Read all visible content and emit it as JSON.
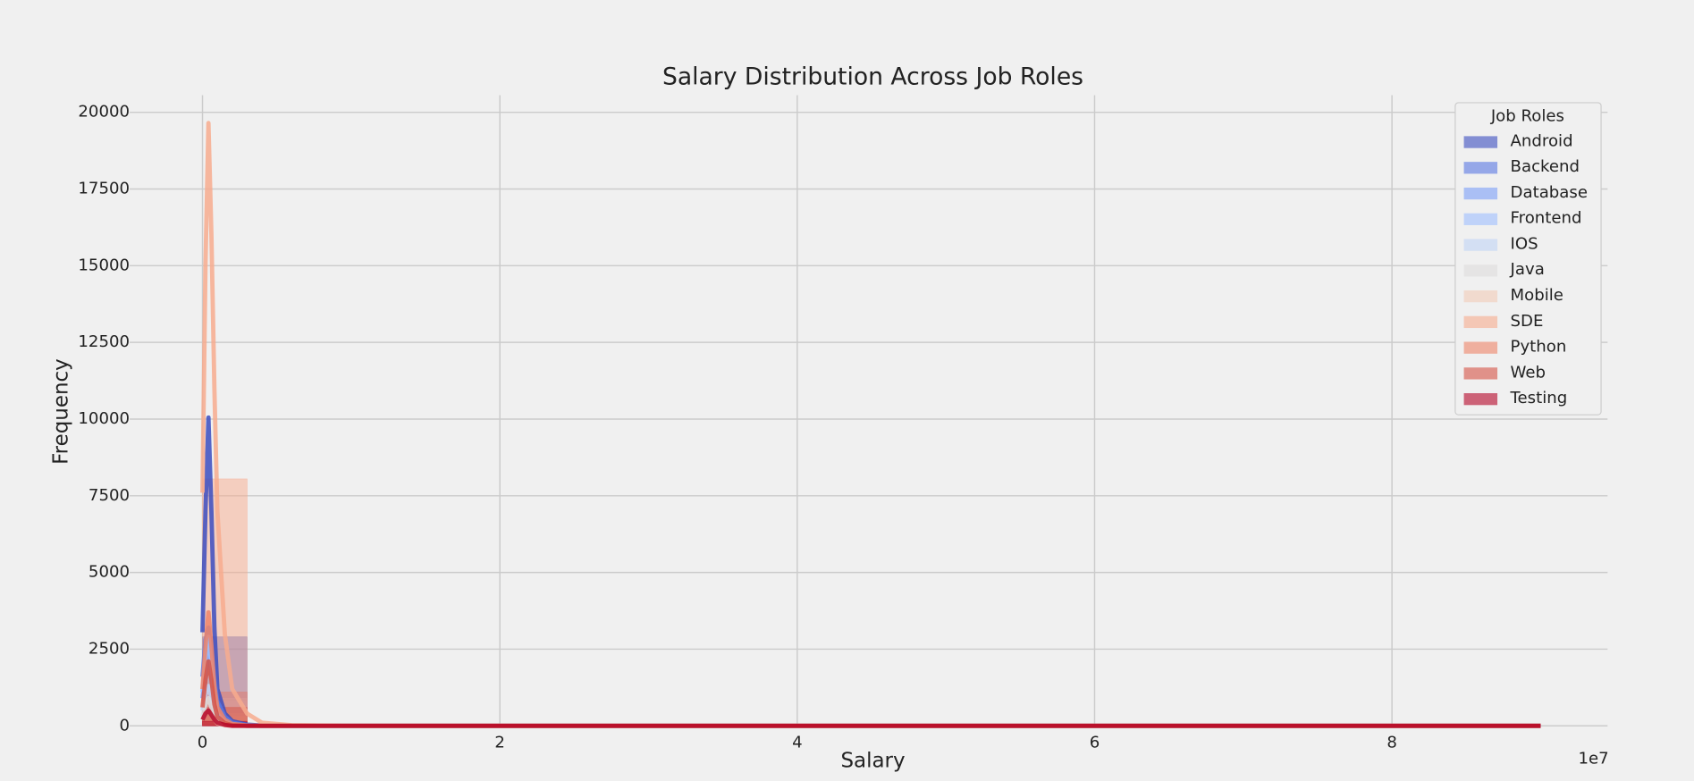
{
  "chart_data": {
    "type": "histogram",
    "title": "Salary Distribution Across Job Roles",
    "x_label": "Salary",
    "y_label": "Frequency",
    "x_offset_label": "1e7",
    "legend_title": "Job Roles",
    "legend": "upper right",
    "grid": true,
    "xlim": [
      -4900000,
      94500000
    ],
    "ylim": [
      0,
      20560
    ],
    "xticks": [
      0,
      {
        "value": 20000000,
        "label": "2"
      },
      {
        "value": 40000000,
        "label": "4"
      },
      {
        "value": 60000000,
        "label": "6"
      },
      {
        "value": 80000000,
        "label": "8"
      }
    ],
    "yticks": [
      0,
      2500,
      5000,
      7500,
      10000,
      12500,
      15000,
      17500,
      20000
    ],
    "bins": [
      0,
      3000000,
      6000000,
      9000000,
      12000000,
      15000000,
      18000000,
      21000000,
      24000000,
      27000000,
      30000000,
      33000000,
      36000000,
      39000000,
      42000000,
      45000000,
      48000000,
      51000000,
      54000000,
      57000000,
      60000000,
      63000000,
      66000000,
      69000000,
      72000000,
      75000000,
      78000000,
      81000000,
      84000000,
      87000000,
      90000000
    ],
    "kde_x": [
      0,
      200000,
      400000,
      600000,
      800000,
      1000000,
      1500000,
      2000000,
      3000000,
      4000000,
      6000000,
      10000000,
      90000000
    ],
    "series": [
      {
        "name": "Android",
        "color": "#3b4cc0",
        "counts": [
          2900,
          20,
          5,
          0,
          0,
          0,
          0,
          0,
          0,
          0,
          0,
          0,
          0,
          0,
          0,
          0,
          0,
          0,
          0,
          0,
          0,
          0,
          0,
          0,
          0,
          0,
          0,
          0,
          0,
          1
        ],
        "kde": [
          3050,
          7000,
          10050,
          7000,
          3200,
          1200,
          400,
          150,
          40,
          10,
          0,
          0,
          0
        ]
      },
      {
        "name": "Backend",
        "color": "#5977e3",
        "counts": [
          1100,
          10,
          2,
          0,
          0,
          0,
          0,
          0,
          0,
          0,
          0,
          0,
          0,
          0,
          0,
          0,
          0,
          0,
          0,
          0,
          0,
          0,
          0,
          0,
          0,
          0,
          0,
          0,
          0,
          0
        ],
        "kde": [
          1600,
          2800,
          3200,
          2500,
          1500,
          800,
          300,
          100,
          20,
          0,
          0,
          0,
          0
        ]
      },
      {
        "name": "Database",
        "color": "#7b9ff9",
        "counts": [
          800,
          8,
          0,
          0,
          0,
          0,
          0,
          0,
          0,
          0,
          0,
          0,
          0,
          0,
          0,
          0,
          0,
          0,
          0,
          0,
          0,
          0,
          0,
          0,
          0,
          0,
          0,
          0,
          0,
          0
        ],
        "kde": [
          900,
          1800,
          2400,
          1800,
          900,
          400,
          120,
          40,
          0,
          0,
          0,
          0,
          0
        ]
      },
      {
        "name": "Frontend",
        "color": "#9ebeff",
        "counts": [
          900,
          8,
          0,
          0,
          0,
          0,
          0,
          0,
          0,
          0,
          0,
          0,
          0,
          0,
          0,
          0,
          0,
          0,
          0,
          0,
          0,
          0,
          0,
          0,
          0,
          0,
          0,
          0,
          0,
          0
        ],
        "kde": [
          1100,
          2200,
          2900,
          2000,
          1000,
          400,
          120,
          30,
          0,
          0,
          0,
          0,
          0
        ]
      },
      {
        "name": "IOS",
        "color": "#c0d4f5",
        "counts": [
          400,
          4,
          0,
          0,
          0,
          0,
          0,
          0,
          0,
          0,
          0,
          0,
          0,
          0,
          0,
          0,
          0,
          0,
          0,
          0,
          0,
          0,
          0,
          0,
          0,
          0,
          0,
          0,
          0,
          0
        ],
        "kde": [
          500,
          1000,
          1300,
          900,
          500,
          200,
          60,
          20,
          0,
          0,
          0,
          0,
          0
        ]
      },
      {
        "name": "Java",
        "color": "#dddcdc",
        "counts": [
          300,
          3,
          0,
          0,
          0,
          0,
          0,
          0,
          0,
          0,
          0,
          0,
          0,
          0,
          0,
          0,
          0,
          0,
          0,
          0,
          0,
          0,
          0,
          0,
          0,
          0,
          0,
          0,
          0,
          0
        ],
        "kde": [
          300,
          700,
          900,
          600,
          300,
          120,
          40,
          10,
          0,
          0,
          0,
          0,
          0
        ]
      },
      {
        "name": "Mobile",
        "color": "#f2cbb7",
        "counts": [
          150,
          2,
          0,
          0,
          0,
          0,
          0,
          0,
          0,
          0,
          0,
          0,
          0,
          0,
          0,
          0,
          0,
          0,
          0,
          0,
          0,
          0,
          0,
          0,
          0,
          0,
          0,
          0,
          0,
          0
        ],
        "kde": [
          200,
          400,
          500,
          350,
          200,
          80,
          20,
          0,
          0,
          0,
          0,
          0,
          0
        ]
      },
      {
        "name": "SDE",
        "color": "#f7ac8e",
        "counts": [
          8050,
          50,
          10,
          2,
          0,
          0,
          0,
          0,
          0,
          0,
          0,
          0,
          0,
          0,
          0,
          0,
          0,
          0,
          0,
          0,
          0,
          0,
          0,
          0,
          0,
          0,
          0,
          0,
          0,
          0
        ],
        "kde": [
          7600,
          15000,
          19650,
          16000,
          11000,
          7000,
          3000,
          1200,
          400,
          100,
          20,
          0,
          0
        ]
      },
      {
        "name": "Python",
        "color": "#ee8468",
        "counts": [
          1100,
          10,
          0,
          0,
          0,
          0,
          0,
          0,
          0,
          0,
          0,
          0,
          0,
          0,
          0,
          0,
          0,
          0,
          0,
          0,
          0,
          0,
          0,
          0,
          0,
          0,
          0,
          0,
          0,
          0
        ],
        "kde": [
          1200,
          2600,
          3700,
          2600,
          1300,
          600,
          200,
          60,
          10,
          0,
          0,
          0,
          0
        ]
      },
      {
        "name": "Web",
        "color": "#d65244",
        "counts": [
          600,
          5,
          0,
          0,
          0,
          0,
          0,
          0,
          0,
          0,
          0,
          0,
          0,
          0,
          0,
          0,
          0,
          0,
          0,
          0,
          0,
          0,
          0,
          0,
          0,
          0,
          0,
          0,
          0,
          0
        ],
        "kde": [
          600,
          1500,
          2100,
          1500,
          700,
          300,
          90,
          20,
          0,
          0,
          0,
          0,
          0
        ]
      },
      {
        "name": "Testing",
        "color": "#b40426",
        "counts": [
          150,
          2,
          0,
          0,
          0,
          0,
          0,
          0,
          0,
          0,
          0,
          0,
          0,
          0,
          0,
          0,
          0,
          0,
          0,
          0,
          0,
          0,
          0,
          0,
          0,
          0,
          0,
          0,
          0,
          0
        ],
        "kde": [
          200,
          400,
          500,
          350,
          200,
          100,
          30,
          0,
          0,
          0,
          0,
          0,
          0
        ]
      }
    ]
  }
}
